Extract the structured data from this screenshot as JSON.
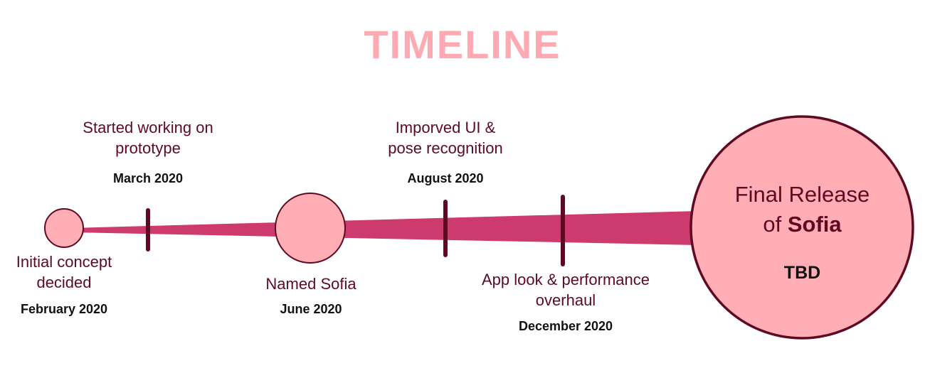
{
  "colors": {
    "title": "#ffaab2",
    "band": "#cc3a6e",
    "node_fill": "#ffaeb6",
    "node_stroke": "#5e0a23",
    "tick": "#5e0a23",
    "label_text": "#5e0a23",
    "date_text": "#111111"
  },
  "title": "TIMELINE",
  "milestones": [
    {
      "label_lines": [
        "Initial concept",
        "decided"
      ],
      "date": "February 2020"
    },
    {
      "label_lines": [
        "Started working on",
        "prototype"
      ],
      "date": "March 2020"
    },
    {
      "label_lines": [
        "Named Sofia"
      ],
      "date": "June 2020"
    },
    {
      "label_lines": [
        "Imporved UI &",
        "pose recognition"
      ],
      "date": "August 2020"
    },
    {
      "label_lines": [
        "App look & performance",
        "overhaul"
      ],
      "date": "December 2020"
    }
  ],
  "final": {
    "line1": "Final Release",
    "line2_prefix": "of ",
    "line2_bold": "Sofia",
    "date": "TBD"
  }
}
